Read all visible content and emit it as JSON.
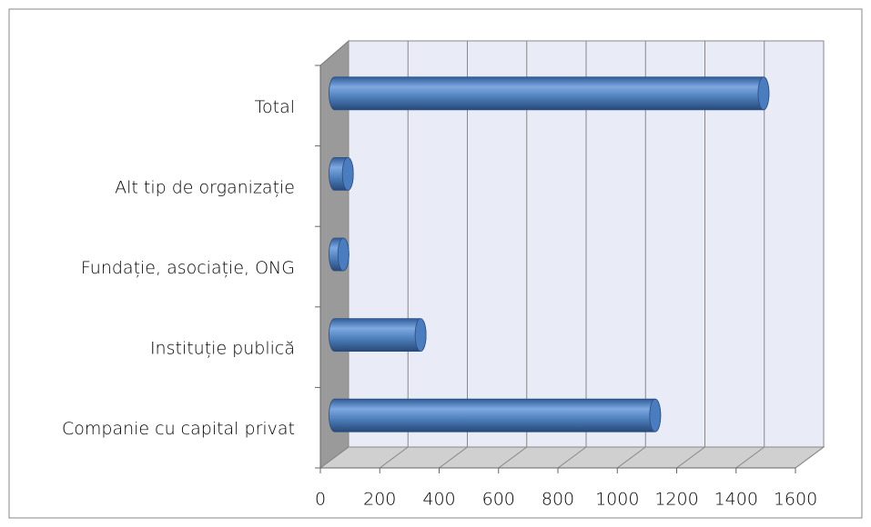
{
  "chart_data": {
    "type": "bar3d",
    "orientation": "horizontal",
    "categories": [
      "Total",
      "Alt tip de organizație",
      "Fundație, asociație, ONG",
      "Instituție publică",
      "Companie cu capital privat"
    ],
    "values": [
      1445,
      45,
      30,
      290,
      1080
    ],
    "color": "#4f81bd",
    "xlim": [
      0,
      1600
    ],
    "xticks": [
      0,
      200,
      400,
      600,
      800,
      1000,
      1200,
      1400,
      1600
    ],
    "grid": true
  }
}
